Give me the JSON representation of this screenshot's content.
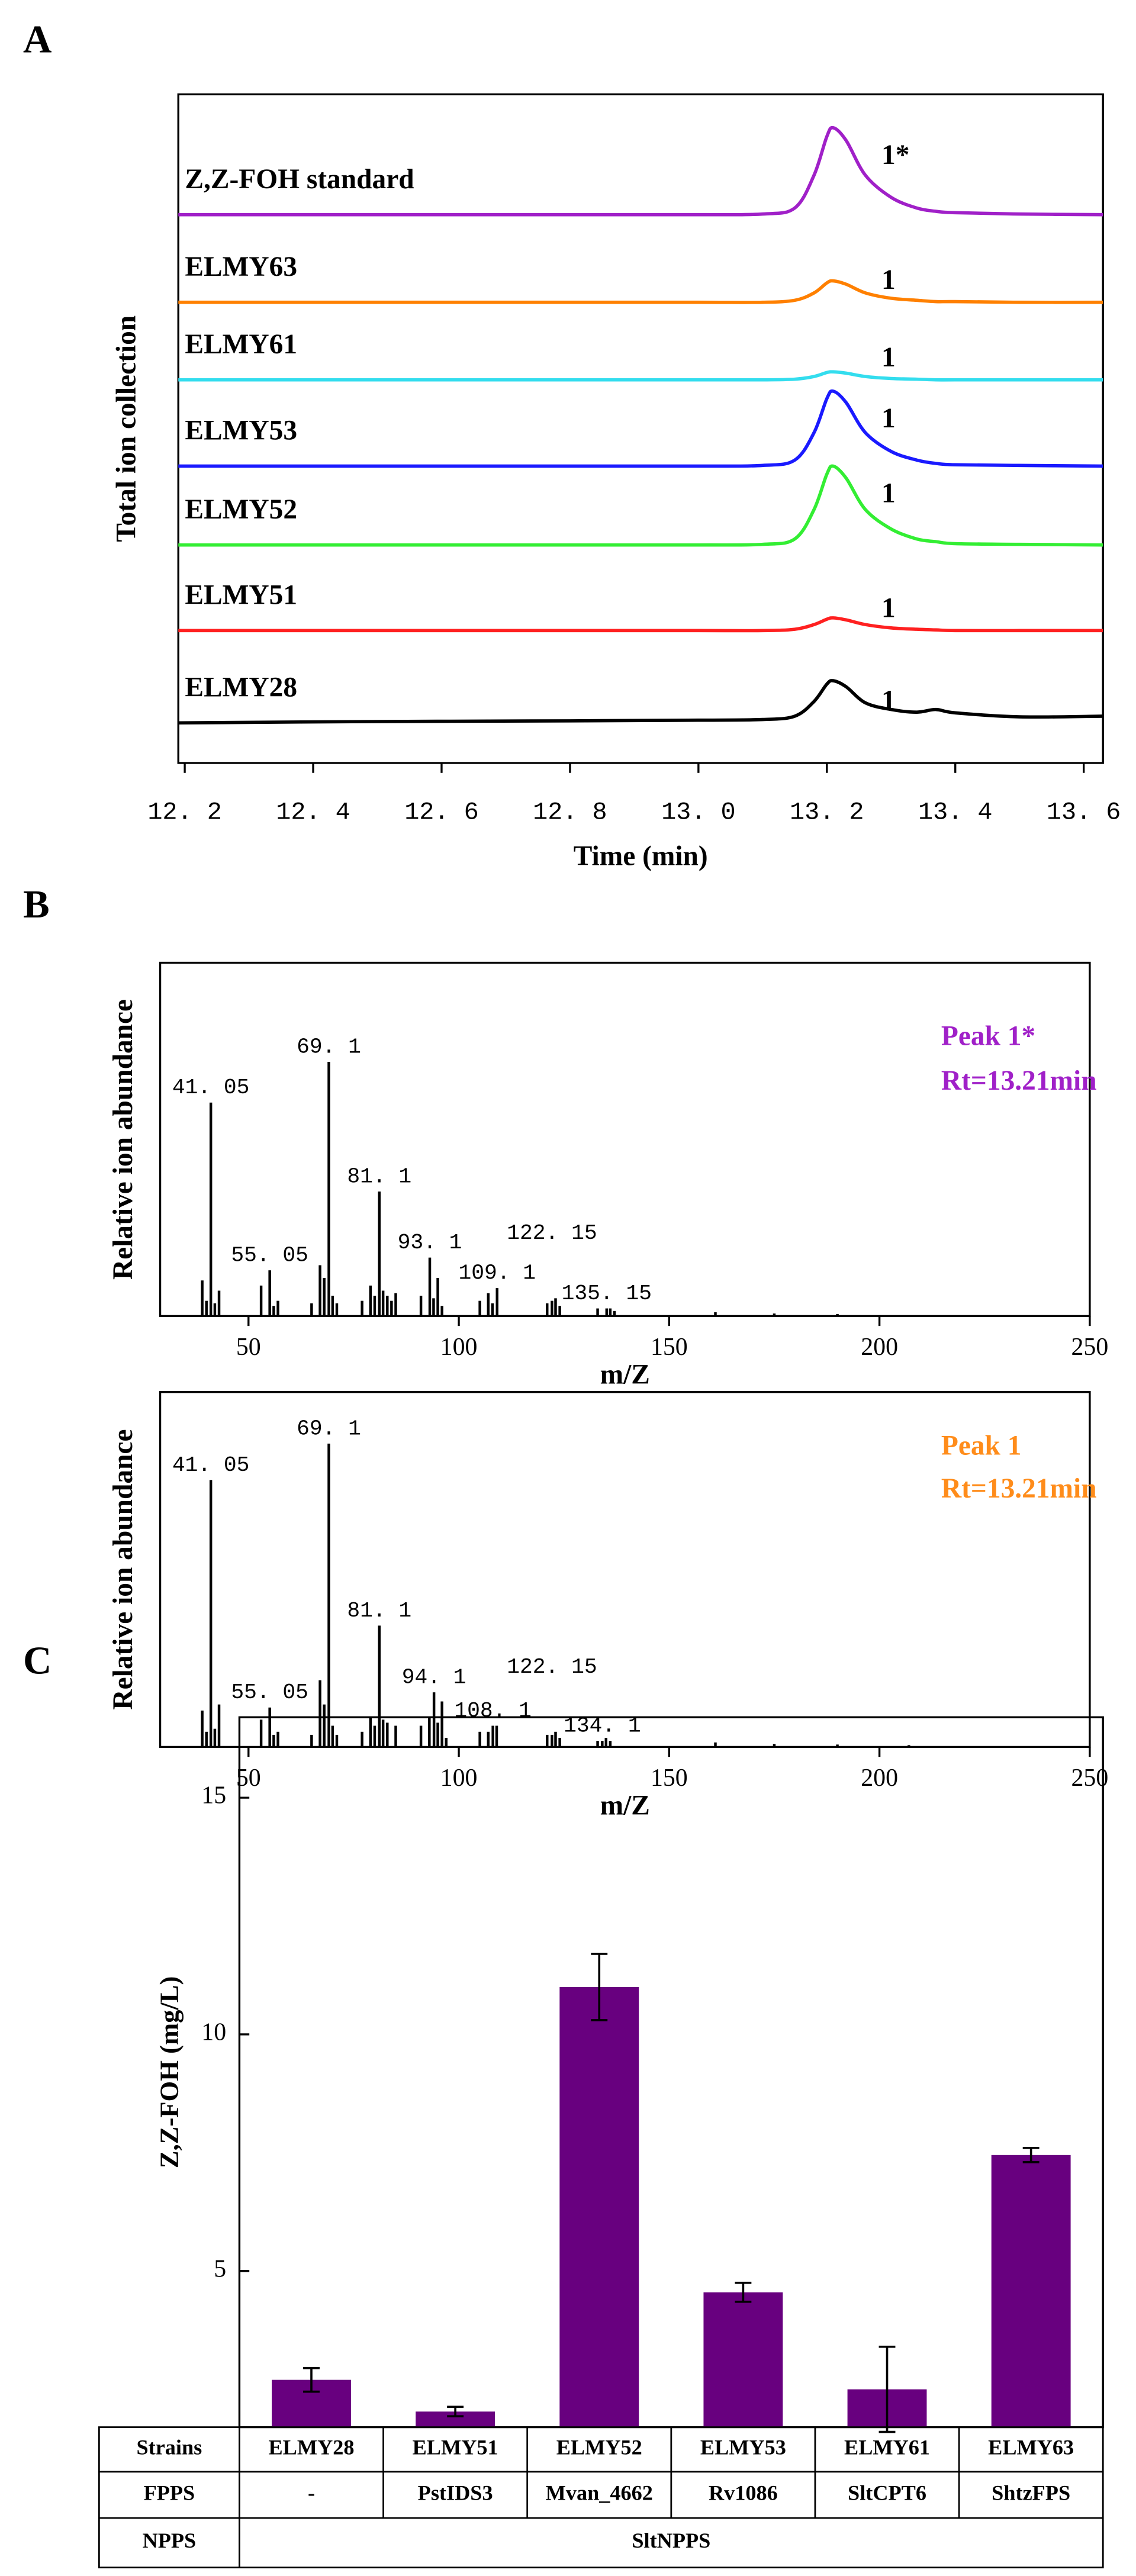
{
  "chart_data": [
    {
      "panel": "A",
      "type": "line",
      "xlabel": "Time (min)",
      "ylabel": "Total ion collection",
      "xlim": [
        12.19,
        13.63
      ],
      "xticks": [
        {
          "value": 12.2,
          "label": "12. 2"
        },
        {
          "value": 12.4,
          "label": "12. 4"
        },
        {
          "value": 12.6,
          "label": "12. 6"
        },
        {
          "value": 12.8,
          "label": "12. 8"
        },
        {
          "value": 13.0,
          "label": "13. 0"
        },
        {
          "value": 13.2,
          "label": "13. 2"
        },
        {
          "value": 13.4,
          "label": "13. 4"
        },
        {
          "value": 13.6,
          "label": "13. 6"
        }
      ],
      "ylim": [
        0,
        100
      ],
      "x": [
        12.19,
        12.5,
        12.8,
        13.0,
        13.1,
        13.15,
        13.18,
        13.2,
        13.21,
        13.23,
        13.26,
        13.3,
        13.34,
        13.37,
        13.4,
        13.5,
        13.63
      ],
      "series": [
        {
          "name": "Z,Z-FOH standard",
          "peak_label": "1*",
          "color": "#a020c8",
          "values": [
            82,
            82,
            82,
            82,
            82.1,
            83,
            87.9,
            93.7,
            95,
            93.1,
            87.9,
            84.6,
            83,
            82.5,
            82.3,
            82.1,
            82
          ]
        },
        {
          "name": "ELMY63",
          "peak_label": "1",
          "color": "#ff8000",
          "values": [
            68.9,
            68.9,
            68.9,
            68.9,
            68.9,
            69.2,
            70.3,
            71.8,
            72.1,
            71.6,
            70.3,
            69.5,
            69.2,
            69.0,
            69.0,
            68.9,
            68.9
          ]
        },
        {
          "name": "ELMY61",
          "peak_label": "1",
          "color": "#33ddee",
          "values": [
            57.3,
            57.3,
            57.3,
            57.3,
            57.3,
            57.4,
            57.8,
            58.4,
            58.5,
            58.3,
            57.8,
            57.5,
            57.4,
            57.3,
            57.3,
            57.3,
            57.3
          ]
        },
        {
          "name": "ELMY53",
          "peak_label": "1",
          "color": "#1a1aff",
          "values": [
            44.4,
            44.4,
            44.4,
            44.4,
            44.5,
            45.3,
            49.4,
            54.5,
            55.6,
            53.9,
            49.4,
            46.6,
            45.3,
            44.8,
            44.6,
            44.5,
            44.4
          ]
        },
        {
          "name": "ELMY52",
          "peak_label": "1",
          "color": "#33ee33",
          "values": [
            32.6,
            32.6,
            32.6,
            32.6,
            32.7,
            33.5,
            37.9,
            43.2,
            44.4,
            42.6,
            37.9,
            35,
            33.5,
            33.1,
            32.8,
            32.7,
            32.6
          ]
        },
        {
          "name": "ELMY51",
          "peak_label": "1",
          "color": "#ff2020",
          "values": [
            19.8,
            19.8,
            19.8,
            19.8,
            19.8,
            20,
            20.7,
            21.5,
            21.7,
            21.4,
            20.7,
            20.2,
            20,
            19.9,
            19.8,
            19.8,
            19.8
          ]
        },
        {
          "name": "ELMY28",
          "peak_label": "1",
          "color": "#000000",
          "values": [
            6.0,
            6.2,
            6.3,
            6.4,
            6.5,
            7.0,
            9.2,
            11.8,
            12.3,
            11.4,
            9.0,
            8.0,
            7.6,
            8.0,
            7.5,
            6.9,
            7.0
          ]
        }
      ]
    },
    {
      "panel": "B",
      "type": "stem",
      "xlabel": "m/Z",
      "ylabel": "Relative ion abundance",
      "xlim": [
        29,
        250
      ],
      "xticks": [
        50,
        100,
        150,
        200,
        250
      ],
      "ylim": [
        0,
        139
      ],
      "color": "#000000",
      "annotation": [
        "Peak 1*",
        "Rt=13.21min"
      ],
      "annotation_color": "#a020c8",
      "x": [
        39,
        40,
        41.05,
        42,
        43,
        53,
        55.05,
        56,
        57,
        65,
        67,
        68,
        69.1,
        70,
        71,
        77,
        79,
        80,
        81.1,
        82,
        83,
        84,
        85,
        91,
        93.1,
        94,
        95,
        96,
        105,
        107,
        108,
        109.1,
        121,
        122.15,
        123,
        124,
        133,
        135.15,
        136,
        137,
        161,
        175,
        190
      ],
      "values": [
        14,
        6,
        84,
        5,
        10,
        12,
        18,
        4,
        6,
        5,
        20,
        15,
        100,
        8,
        5,
        6,
        12,
        8,
        49,
        10,
        8,
        6,
        9,
        8,
        23,
        7,
        15,
        4,
        6,
        9,
        5,
        11,
        5,
        6,
        7,
        4,
        3,
        3,
        3,
        2,
        1.5,
        1,
        0.8
      ],
      "labels": [
        null,
        null,
        "41. 05",
        null,
        null,
        null,
        "55. 05",
        null,
        null,
        null,
        null,
        null,
        "69. 1",
        null,
        null,
        null,
        null,
        null,
        "81. 1",
        null,
        null,
        null,
        null,
        null,
        "93. 1",
        null,
        null,
        null,
        null,
        null,
        null,
        "109. 1",
        null,
        "122. 15",
        null,
        null,
        null,
        "135. 15",
        null,
        null,
        null,
        null,
        null
      ]
    },
    {
      "type": "stem",
      "xlabel": "m/Z",
      "ylabel": "Relative ion abundance",
      "xlim": [
        29,
        250
      ],
      "xticks": [
        50,
        100,
        150,
        200,
        250
      ],
      "ylim": [
        0,
        117
      ],
      "color": "#000000",
      "annotation": [
        "Peak 1",
        "Rt=13.21min"
      ],
      "annotation_color": "#ff8c1a",
      "x": [
        39,
        40,
        41.05,
        42,
        43,
        53,
        55.05,
        56,
        57,
        65,
        67,
        68,
        69.1,
        70,
        71,
        77,
        79,
        80,
        81.1,
        82,
        83,
        85,
        91,
        93,
        94.1,
        95,
        96,
        97,
        105,
        107,
        108.1,
        109,
        121,
        122.15,
        123,
        124,
        133,
        134.1,
        135,
        136,
        161,
        175,
        190,
        207
      ],
      "values": [
        12,
        5,
        88,
        6,
        14,
        9,
        13,
        4,
        5,
        4,
        22,
        14,
        100,
        7,
        4,
        5,
        10,
        7,
        40,
        9,
        8,
        7,
        7,
        10,
        18,
        8,
        15,
        3,
        5,
        5,
        7,
        7,
        4,
        4,
        5,
        3,
        2,
        2,
        3,
        2,
        1.5,
        1,
        0.8,
        0.6
      ],
      "labels": [
        null,
        null,
        "41. 05",
        null,
        null,
        null,
        "55. 05",
        null,
        null,
        null,
        null,
        null,
        "69. 1",
        null,
        null,
        null,
        null,
        null,
        "81. 1",
        null,
        null,
        null,
        null,
        null,
        "94. 1",
        null,
        null,
        null,
        null,
        null,
        "108. 1",
        null,
        null,
        "122. 15",
        null,
        null,
        null,
        "134. 1",
        null,
        null,
        null,
        null,
        null,
        null
      ]
    },
    {
      "panel": "C",
      "type": "bar",
      "ylabel": "Z,Z-FOH (mg/L)",
      "ylim": [
        1.7,
        16.7
      ],
      "yticks": [
        5,
        10,
        15
      ],
      "color": "#68007f",
      "categories": [
        "ELMY28",
        "ELMY51",
        "ELMY52",
        "ELMY53",
        "ELMY61",
        "ELMY63"
      ],
      "values": [
        2.7,
        2.03,
        11.0,
        4.55,
        2.5,
        7.45
      ],
      "errors": [
        0.25,
        0.1,
        0.7,
        0.2,
        0.9,
        0.15
      ],
      "table": [
        {
          "label": "Strains"
        },
        {
          "label": "FPPS",
          "cells": [
            "-",
            "PstIDS3",
            "Mvan_4662",
            "Rv1086",
            "SltCPT6",
            "ShtzFPS"
          ]
        },
        {
          "label": "NPPS",
          "cells": [
            "SltNPPS"
          ]
        }
      ]
    }
  ]
}
